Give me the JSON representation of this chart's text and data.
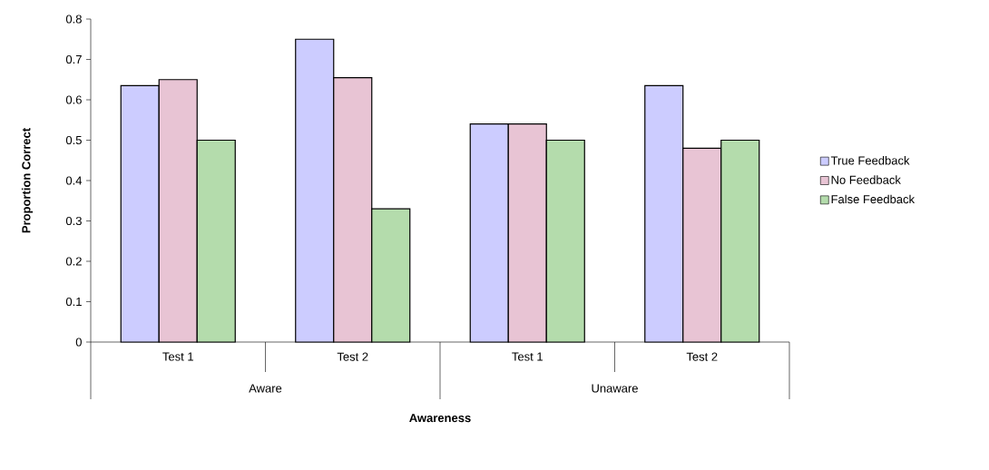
{
  "chart_data": {
    "type": "bar",
    "xlabel": "Awareness",
    "ylabel": "Proportion Correct",
    "categories": [
      "Test 1",
      "Test 2",
      "Test 1",
      "Test 2"
    ],
    "annotations": [
      "Aware",
      "Unaware"
    ],
    "series": [
      {
        "name": "True Feedback",
        "color": "#ccccff",
        "values": [
          0.635,
          0.75,
          0.54,
          0.635
        ]
      },
      {
        "name": "No Feedback",
        "color": "#e8c4d4",
        "values": [
          0.65,
          0.655,
          0.54,
          0.48
        ]
      },
      {
        "name": "False Feedback",
        "color": "#b4dcac",
        "values": [
          0.5,
          0.33,
          0.5,
          0.5
        ]
      }
    ],
    "ylim": [
      0,
      0.8
    ],
    "yticks": [
      0,
      0.1,
      0.2,
      0.3,
      0.4,
      0.5,
      0.6,
      0.7,
      0.8
    ],
    "legend": "right"
  }
}
